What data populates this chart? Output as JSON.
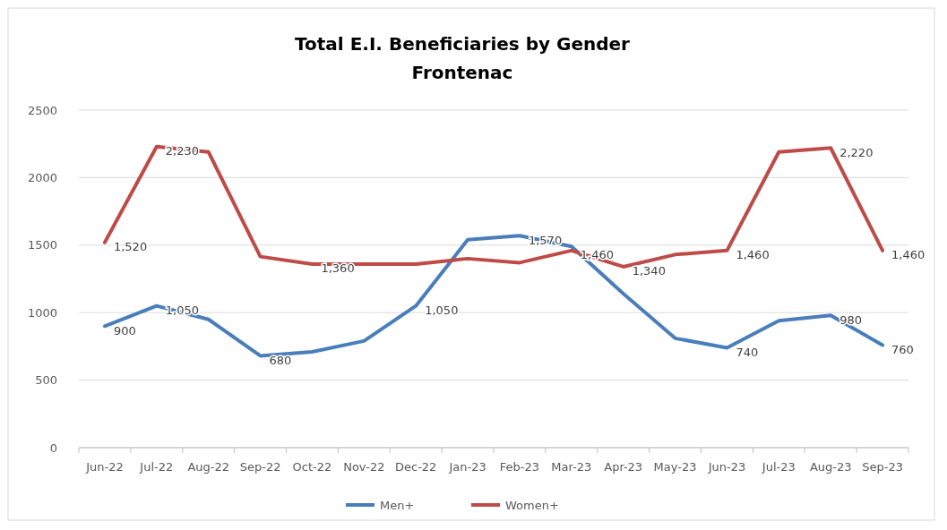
{
  "chart_data": {
    "type": "line",
    "title": "Total E.I. Beneficiaries by Gender",
    "subtitle": "Frontenac",
    "categories": [
      "Jun-22",
      "Jul-22",
      "Aug-22",
      "Sep-22",
      "Oct-22",
      "Nov-22",
      "Dec-22",
      "Jan-23",
      "Feb-23",
      "Mar-23",
      "Apr-23",
      "May-23",
      "Jun-23",
      "Jul-23",
      "Aug-23",
      "Sep-23"
    ],
    "series": [
      {
        "name": "Men+",
        "color": "#4a7ebb",
        "values": [
          900,
          1050,
          950,
          680,
          710,
          790,
          1050,
          1540,
          1570,
          1490,
          1140,
          810,
          740,
          940,
          980,
          760
        ],
        "value_labels": [
          "900",
          "1,050",
          null,
          "680",
          null,
          null,
          "1,050",
          null,
          "1,570",
          null,
          null,
          null,
          "740",
          null,
          "980",
          "760"
        ]
      },
      {
        "name": "Women+",
        "color": "#be4b48",
        "values": [
          1520,
          2230,
          2190,
          1415,
          1360,
          1360,
          1360,
          1400,
          1370,
          1460,
          1340,
          1430,
          1460,
          2190,
          2220,
          1460
        ],
        "value_labels": [
          "1,520",
          "2,230",
          null,
          null,
          "1,360",
          null,
          null,
          null,
          null,
          "1,460",
          "1,340",
          null,
          "1,460",
          null,
          "2,220",
          "1,460"
        ]
      }
    ],
    "ylim": [
      0,
      2500
    ],
    "yticks": [
      0,
      500,
      1000,
      1500,
      2000,
      2500
    ],
    "grid": "y",
    "legend": "bottom",
    "marker": "none",
    "line_style": "solid"
  }
}
